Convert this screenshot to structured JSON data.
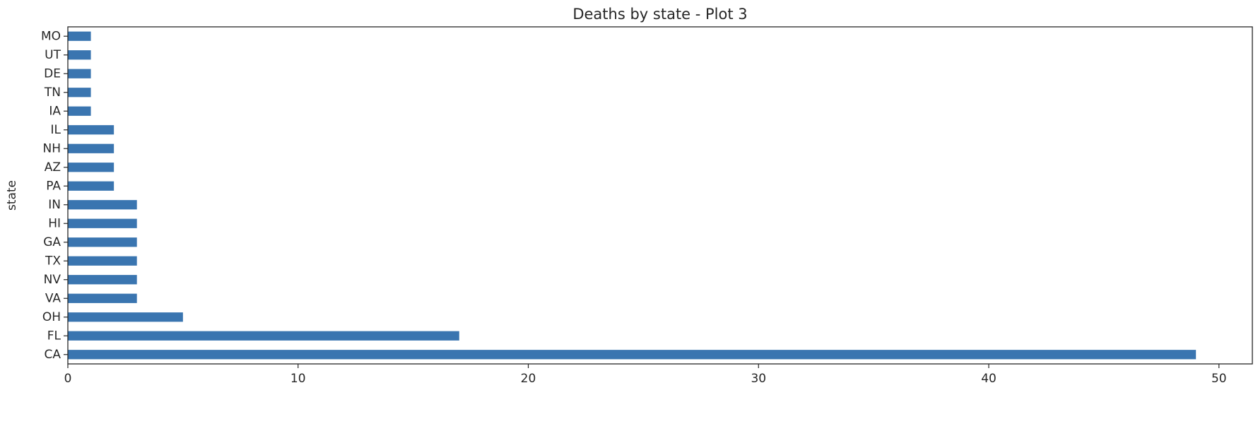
{
  "chart_data": {
    "type": "bar",
    "orientation": "horizontal",
    "title": "Deaths by state - Plot 3",
    "xlabel": "",
    "ylabel": "state",
    "categories": [
      "CA",
      "FL",
      "OH",
      "VA",
      "NV",
      "TX",
      "GA",
      "HI",
      "IN",
      "PA",
      "AZ",
      "NH",
      "IL",
      "IA",
      "TN",
      "DE",
      "UT",
      "MO"
    ],
    "values": [
      49,
      17,
      5,
      3,
      3,
      3,
      3,
      3,
      3,
      2,
      2,
      2,
      2,
      1,
      1,
      1,
      1,
      1
    ],
    "xlim": [
      0,
      51.45
    ],
    "xticks": [
      0,
      10,
      20,
      30,
      40,
      50
    ],
    "grid": false,
    "colors": {
      "bar": "#3a75b0",
      "axis": "#262626"
    }
  }
}
